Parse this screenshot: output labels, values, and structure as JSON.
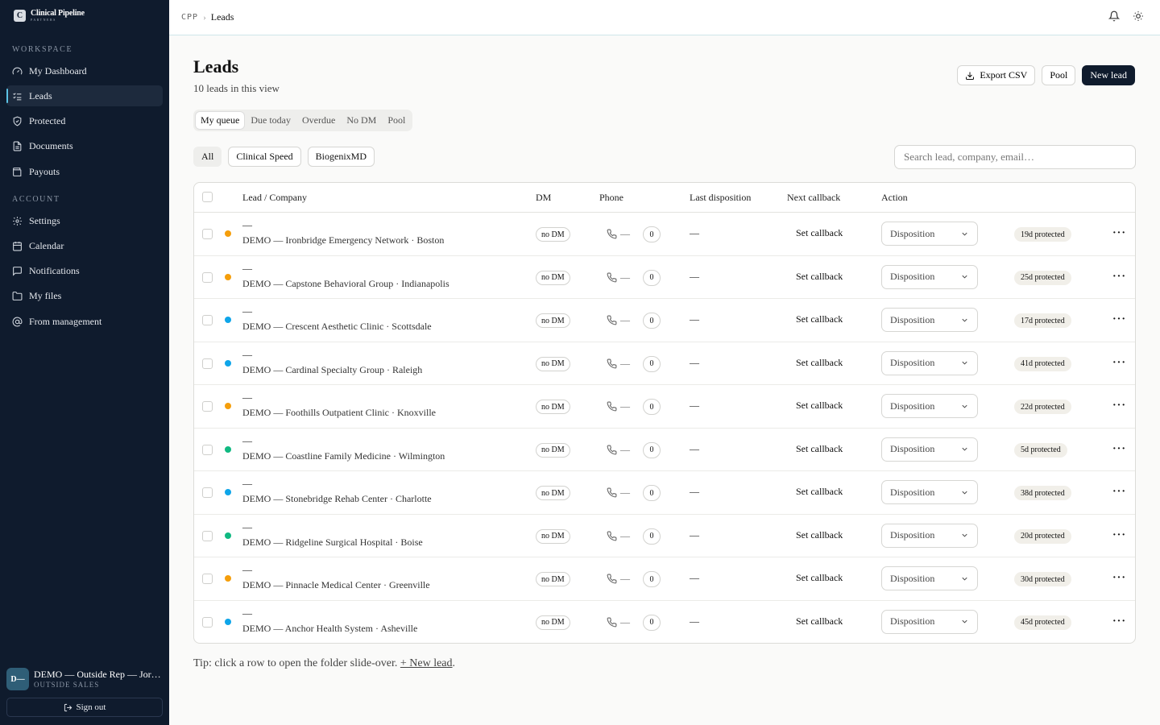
{
  "brand": {
    "name": "Clinical Pipeline",
    "sub": "PARTNERS",
    "mark": "C"
  },
  "sidebar": {
    "workspace_label": "WORKSPACE",
    "account_label": "ACCOUNT",
    "workspace_items": [
      {
        "label": "My Dashboard",
        "icon": "gauge-icon"
      },
      {
        "label": "Leads",
        "icon": "list-check-icon",
        "active": true
      },
      {
        "label": "Protected",
        "icon": "shield-icon"
      },
      {
        "label": "Documents",
        "icon": "document-icon"
      },
      {
        "label": "Payouts",
        "icon": "wallet-icon"
      }
    ],
    "account_items": [
      {
        "label": "Settings",
        "icon": "gear-icon"
      },
      {
        "label": "Calendar",
        "icon": "calendar-icon"
      },
      {
        "label": "Notifications",
        "icon": "chat-icon"
      },
      {
        "label": "My files",
        "icon": "folder-icon"
      },
      {
        "label": "From management",
        "icon": "at-icon"
      }
    ],
    "user": {
      "initials": "D—",
      "name": "DEMO — Outside Rep — Jor…",
      "role": "OUTSIDE SALES"
    },
    "signout_label": "Sign out"
  },
  "topbar": {
    "crumb_root": "CPP",
    "crumb_current": "Leads"
  },
  "page": {
    "title": "Leads",
    "subtitle": "10 leads in this view",
    "export_label": "Export CSV",
    "pool_label": "Pool",
    "new_lead_label": "New lead"
  },
  "tabs": [
    "My queue",
    "Due today",
    "Overdue",
    "No DM",
    "Pool"
  ],
  "filters": [
    "All",
    "Clinical Speed",
    "BiogenixMD"
  ],
  "search": {
    "placeholder": "Search lead, company, email…",
    "value": ""
  },
  "table": {
    "headers": {
      "lead": "Lead / Company",
      "dm": "DM",
      "phone": "Phone",
      "last": "Last disposition",
      "next": "Next callback",
      "action": "Action"
    },
    "rows": [
      {
        "name": "—",
        "company": "DEMO — Ironbridge Emergency Network · Boston",
        "dot": "#f59e0b",
        "dm": "no DM",
        "phone": "—",
        "count": "0",
        "last": "—",
        "next": "Set callback",
        "action": "Disposition",
        "protected": "19d protected"
      },
      {
        "name": "—",
        "company": "DEMO — Capstone Behavioral Group · Indianapolis",
        "dot": "#f59e0b",
        "dm": "no DM",
        "phone": "—",
        "count": "0",
        "last": "—",
        "next": "Set callback",
        "action": "Disposition",
        "protected": "25d protected"
      },
      {
        "name": "—",
        "company": "DEMO — Crescent Aesthetic Clinic · Scottsdale",
        "dot": "#0ea5e9",
        "dm": "no DM",
        "phone": "—",
        "count": "0",
        "last": "—",
        "next": "Set callback",
        "action": "Disposition",
        "protected": "17d protected"
      },
      {
        "name": "—",
        "company": "DEMO — Cardinal Specialty Group · Raleigh",
        "dot": "#0ea5e9",
        "dm": "no DM",
        "phone": "—",
        "count": "0",
        "last": "—",
        "next": "Set callback",
        "action": "Disposition",
        "protected": "41d protected"
      },
      {
        "name": "—",
        "company": "DEMO — Foothills Outpatient Clinic · Knoxville",
        "dot": "#f59e0b",
        "dm": "no DM",
        "phone": "—",
        "count": "0",
        "last": "—",
        "next": "Set callback",
        "action": "Disposition",
        "protected": "22d protected"
      },
      {
        "name": "—",
        "company": "DEMO — Coastline Family Medicine · Wilmington",
        "dot": "#10b981",
        "dm": "no DM",
        "phone": "—",
        "count": "0",
        "last": "—",
        "next": "Set callback",
        "action": "Disposition",
        "protected": "5d protected"
      },
      {
        "name": "—",
        "company": "DEMO — Stonebridge Rehab Center · Charlotte",
        "dot": "#0ea5e9",
        "dm": "no DM",
        "phone": "—",
        "count": "0",
        "last": "—",
        "next": "Set callback",
        "action": "Disposition",
        "protected": "38d protected"
      },
      {
        "name": "—",
        "company": "DEMO — Ridgeline Surgical Hospital · Boise",
        "dot": "#10b981",
        "dm": "no DM",
        "phone": "—",
        "count": "0",
        "last": "—",
        "next": "Set callback",
        "action": "Disposition",
        "protected": "20d protected"
      },
      {
        "name": "—",
        "company": "DEMO — Pinnacle Medical Center · Greenville",
        "dot": "#f59e0b",
        "dm": "no DM",
        "phone": "—",
        "count": "0",
        "last": "—",
        "next": "Set callback",
        "action": "Disposition",
        "protected": "30d protected"
      },
      {
        "name": "—",
        "company": "DEMO — Anchor Health System · Asheville",
        "dot": "#0ea5e9",
        "dm": "no DM",
        "phone": "—",
        "count": "0",
        "last": "—",
        "next": "Set callback",
        "action": "Disposition",
        "protected": "45d protected"
      }
    ]
  },
  "tip": {
    "text": "Tip: click a row to open the folder slide-over.",
    "link": "+ New lead",
    "end": "."
  },
  "colors": {
    "sidebar_bg": "#0f1b2d",
    "primary": "#0f1b2d",
    "accent": "#5cc3e6"
  }
}
